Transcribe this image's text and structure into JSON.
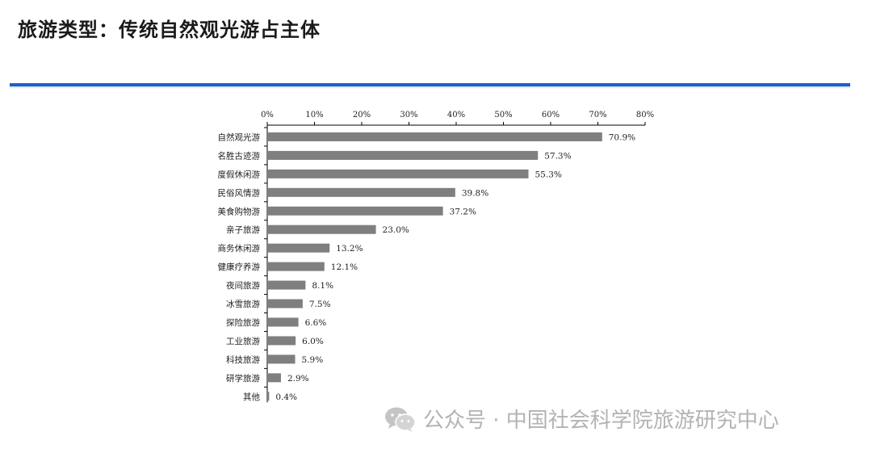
{
  "header": {
    "title": "旅游类型：传统自然观光游占主体"
  },
  "watermark": {
    "icon": "wechat-icon",
    "text": "公众号 · 中国社会科学院旅游研究中心"
  },
  "colors": {
    "accent": "#1f5fc8",
    "bar": "#7f7f7f"
  },
  "chart_data": {
    "type": "bar",
    "orientation": "horizontal",
    "categories": [
      "自然观光游",
      "名胜古迹游",
      "度假休闲游",
      "民俗风情游",
      "美食购物游",
      "亲子旅游",
      "商务休闲游",
      "健康疗养游",
      "夜间旅游",
      "冰雪旅游",
      "探险旅游",
      "工业旅游",
      "科技旅游",
      "研学旅游",
      "其他"
    ],
    "values": [
      70.9,
      57.3,
      55.3,
      39.8,
      37.2,
      23.0,
      13.2,
      12.1,
      8.1,
      7.5,
      6.6,
      6.0,
      5.9,
      2.9,
      0.4
    ],
    "value_labels": [
      "70.9%",
      "57.3%",
      "55.3%",
      "39.8%",
      "37.2%",
      "23.0%",
      "13.2%",
      "12.1%",
      "8.1%",
      "7.5%",
      "6.6%",
      "6.0%",
      "5.9%",
      "2.9%",
      "0.4%"
    ],
    "xlim": [
      0,
      80
    ],
    "xticks": [
      0,
      10,
      20,
      30,
      40,
      50,
      60,
      70,
      80
    ],
    "xtick_labels": [
      "0%",
      "10%",
      "20%",
      "30%",
      "40%",
      "50%",
      "60%",
      "70%",
      "80%"
    ],
    "axis_position": "top",
    "grid": false,
    "legend": "none"
  }
}
